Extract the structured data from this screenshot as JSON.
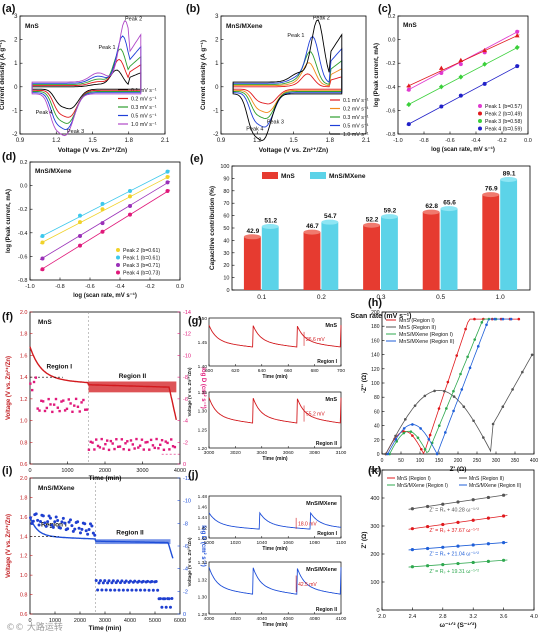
{
  "watermark": "©© 大路运转",
  "chart_data": [
    {
      "id": "a",
      "panel": "(a)",
      "type": "line",
      "inset": "MnS",
      "xlabel": "Voltage (V vs. Zn²⁺/Zn)",
      "ylabel": "Current density (A g⁻¹)",
      "xlim": [
        0.9,
        2.1
      ],
      "ylim": [
        -2,
        3
      ],
      "xticks": [
        "0.9",
        "1.2",
        "1.5",
        "1.8",
        "2.1"
      ],
      "yticks": [
        "-2",
        "-1",
        "0",
        "1",
        "2",
        "3"
      ],
      "annotations": [
        "Peak 1",
        "Peak 2",
        "Peak 3",
        "Peak 4"
      ],
      "series": [
        {
          "name": "0.1 mV s⁻¹",
          "color": "#000000",
          "ox": 1.7,
          "oa": 0.7,
          "rx": 1.32,
          "ra": -0.8
        },
        {
          "name": "0.2 mV s⁻¹",
          "color": "#e0191d",
          "ox": 1.72,
          "oa": 1.1,
          "rx": 1.31,
          "ra": -1.1
        },
        {
          "name": "0.3 mV s⁻¹",
          "color": "#2e9e2e",
          "ox": 1.73,
          "oa": 1.5,
          "rx": 1.3,
          "ra": -1.3
        },
        {
          "name": "0.5 mV s⁻¹",
          "color": "#1f3fd8",
          "ox": 1.75,
          "oa": 2.0,
          "rx": 1.29,
          "ra": -1.5
        },
        {
          "name": "1.0 mV s⁻¹",
          "color": "#b04ac8",
          "ox": 1.77,
          "oa": 2.6,
          "rx": 1.28,
          "ra": -1.7
        }
      ]
    },
    {
      "id": "b",
      "panel": "(b)",
      "type": "line",
      "inset": "MnS/MXene",
      "xlabel": "Voltage (V vs. Zn²⁺/Zn)",
      "ylabel": "Current density (A g⁻¹)",
      "xlim": [
        0.9,
        2.1
      ],
      "ylim": [
        -2,
        3
      ],
      "xticks": [
        "0.9",
        "1.2",
        "1.5",
        "1.8",
        "2.1"
      ],
      "yticks": [
        "-2",
        "-1",
        "0",
        "1",
        "2",
        "3"
      ],
      "annotations": [
        "Peak 1",
        "Peak 2",
        "Peak 3",
        "Peak 4"
      ],
      "series": [
        {
          "name": "0.1 mV s⁻¹",
          "color": "#e0191d",
          "ox": 1.62,
          "oa": 0.5,
          "rx": 1.3,
          "ra": -0.6
        },
        {
          "name": "0.2 mV s⁻¹",
          "color": "#f28a1c",
          "ox": 1.63,
          "oa": 0.9,
          "rx": 1.29,
          "ra": -0.9
        },
        {
          "name": "0.3 mV s⁻¹",
          "color": "#2e9e2e",
          "ox": 1.64,
          "oa": 1.3,
          "rx": 1.28,
          "ra": -1.1
        },
        {
          "name": "0.5 mV s⁻¹",
          "color": "#1f3fd8",
          "ox": 1.66,
          "oa": 1.9,
          "rx": 1.27,
          "ra": -1.4
        },
        {
          "name": "1.0 mV s⁻¹",
          "color": "#000000",
          "ox": 1.7,
          "oa": 2.6,
          "rx": 1.25,
          "ra": -1.9
        }
      ]
    },
    {
      "id": "c",
      "panel": "(c)",
      "type": "scatter",
      "inset": "MnS",
      "xlabel": "log (scan rate, mV s⁻¹)",
      "ylabel": "log (Peak current, mA)",
      "xlim": [
        -1.1,
        0.1
      ],
      "ylim": [
        -1.0,
        0.2
      ],
      "xticks": [
        "-1.0",
        "-0.8",
        "-0.6",
        "-0.4",
        "-0.2",
        "0.0"
      ],
      "yticks": [
        "-0.8",
        "-0.6",
        "-0.4",
        "-0.2",
        "0.0",
        "0.2"
      ],
      "x": [
        -1.0,
        -0.7,
        -0.52,
        -0.3,
        0.0
      ],
      "series": [
        {
          "name": "Peak 1 (b=0.57)",
          "color": "#e03ad0",
          "y": [
            -0.55,
            -0.38,
            -0.29,
            -0.17,
            0.04
          ]
        },
        {
          "name": "Peak 2 (b=0.49)",
          "color": "#e0191d",
          "y": [
            -0.51,
            -0.33,
            -0.25,
            -0.15,
            0.0
          ]
        },
        {
          "name": "Peak 3 (b=0.58)",
          "color": "#3ad03a",
          "y": [
            -0.7,
            -0.52,
            -0.42,
            -0.29,
            -0.12
          ]
        },
        {
          "name": "Peak 4 (b=0.59)",
          "color": "#2020c8",
          "y": [
            -0.9,
            -0.72,
            -0.61,
            -0.49,
            -0.31
          ]
        }
      ]
    },
    {
      "id": "d",
      "panel": "(d)",
      "type": "scatter",
      "inset": "MnS/MXene",
      "xlabel": "log (scan rate, mV s⁻¹)",
      "ylabel": "log (Peak current, mA)",
      "xlim": [
        -1.1,
        0.1
      ],
      "ylim": [
        -0.9,
        0.2
      ],
      "xticks": [
        "-1.0",
        "-0.8",
        "-0.6",
        "-0.4",
        "-0.2",
        "0.0"
      ],
      "yticks": [
        "-0.8",
        "-0.6",
        "-0.4",
        "-0.2",
        "0.0",
        "0.2"
      ],
      "x": [
        -1.0,
        -0.7,
        -0.52,
        -0.3,
        0.0
      ],
      "series": [
        {
          "name": "Peak 2 (b=0.61)",
          "color": "#f0d22a",
          "y": [
            -0.55,
            -0.36,
            -0.24,
            -0.12,
            0.06
          ]
        },
        {
          "name": "Peak 1 (b=0.61)",
          "color": "#3cc8ec",
          "y": [
            -0.49,
            -0.3,
            -0.19,
            -0.07,
            0.11
          ]
        },
        {
          "name": "Peak 3 (b=0.71)",
          "color": "#9a30b8",
          "y": [
            -0.7,
            -0.49,
            -0.37,
            -0.21,
            0.01
          ]
        },
        {
          "name": "Peak 4 (b=0.73)",
          "color": "#e0197a",
          "y": [
            -0.8,
            -0.58,
            -0.45,
            -0.29,
            -0.07
          ]
        }
      ]
    },
    {
      "id": "e",
      "panel": "(e)",
      "type": "bar",
      "xlabel": "Scan rate (mV s⁻¹)",
      "ylabel": "Capacitive contribution (%)",
      "ylim": [
        0,
        100
      ],
      "yticks": [
        "0",
        "10",
        "20",
        "30",
        "40",
        "50",
        "60",
        "70",
        "80",
        "90",
        "100"
      ],
      "categories": [
        "0.1",
        "0.2",
        "0.3",
        "0.5",
        "1.0"
      ],
      "series": [
        {
          "name": "MnS",
          "color": "#e63b30",
          "values": [
            42.9,
            46.7,
            52.2,
            62.8,
            76.9
          ]
        },
        {
          "name": "MnS/MXene",
          "color": "#5cd3e8",
          "values": [
            51.2,
            54.7,
            59.2,
            65.6,
            89.1
          ]
        }
      ],
      "labels": [
        [
          "42.9",
          "46.7",
          "52.2",
          "62.8",
          "76.9"
        ],
        [
          "51.2",
          "54.7",
          "59.2",
          "65.6",
          "89.1"
        ]
      ]
    },
    {
      "id": "f",
      "panel": "(f)",
      "type": "line",
      "inset": "MnS",
      "xlabel": "Time (min)",
      "ylabel": "Voltage (V vs. Zn²⁺/Zn)",
      "ylabel2": "log D (cm² s⁻¹)",
      "xlim": [
        0,
        4100
      ],
      "ylim": [
        0.6,
        2.0
      ],
      "ylim2": [
        -14,
        0
      ],
      "xticks": [
        "0",
        "1000",
        "2000",
        "3000",
        "4000"
      ],
      "yticks": [
        "0.6",
        "0.8",
        "1.0",
        "1.2",
        "1.4",
        "1.6",
        "1.8",
        "2.0"
      ],
      "yticks2": [
        "0",
        "-2",
        "-4",
        "-6",
        "-8",
        "-10",
        "-12",
        "-14"
      ],
      "regions": [
        "Region I",
        "Region II"
      ]
    },
    {
      "id": "g",
      "panel": "(g)",
      "type": "line",
      "inset": "MnS",
      "xlabel": "Time (min)",
      "ylabel": "Voltage (V vs. Zn²⁺/Zn)",
      "top": {
        "xticks": [
          "600",
          "620",
          "640",
          "660",
          "680",
          "700"
        ],
        "yticks": [
          "1.40",
          "1.45",
          "1.50"
        ],
        "annotation": "26.6 mV",
        "region": "Region I"
      },
      "bottom": {
        "xticks": [
          "3000",
          "3020",
          "3040",
          "3060",
          "3080",
          "3100"
        ],
        "yticks": [
          "1.20",
          "1.25",
          "1.30",
          "1.35"
        ],
        "annotation": "55.2 mV",
        "region": "Region II"
      }
    },
    {
      "id": "h",
      "panel": "(h)",
      "type": "scatter",
      "xlabel": "Z' (Ω)",
      "ylabel": "-Z'' (Ω)",
      "xlim": [
        0,
        400
      ],
      "ylim": [
        0,
        200
      ],
      "xticks": [
        "0",
        "50",
        "100",
        "150",
        "200",
        "250",
        "300",
        "350",
        "400"
      ],
      "yticks": [
        "0",
        "20",
        "40",
        "60",
        "80",
        "100",
        "120",
        "140",
        "160",
        "180",
        "200"
      ],
      "series": [
        {
          "name": "MnS (Region I)",
          "color": "#e0191d",
          "marker": "circle"
        },
        {
          "name": "MnS (Region II)",
          "color": "#555555",
          "marker": "square"
        },
        {
          "name": "MnS/MXene (Region I)",
          "color": "#2fa84f",
          "marker": "triangle-down"
        },
        {
          "name": "MnS/MXene (Region II)",
          "color": "#1f5fd8",
          "marker": "triangle"
        }
      ]
    },
    {
      "id": "i",
      "panel": "(i)",
      "type": "line",
      "inset": "MnS/MXene",
      "xlabel": "Time (min)",
      "ylabel": "Voltage (V vs. Zn²⁺/Zn)",
      "ylabel2": "log D (cm² s⁻¹)",
      "xlim": [
        0,
        6300
      ],
      "ylim": [
        0.6,
        2.0
      ],
      "ylim2": [
        -12,
        0
      ],
      "xticks": [
        "0",
        "1000",
        "2000",
        "3000",
        "4000",
        "5000",
        "6000"
      ],
      "yticks": [
        "0.6",
        "0.8",
        "1.0",
        "1.2",
        "1.4",
        "1.6",
        "1.8",
        "2.0"
      ],
      "yticks2": [
        "0",
        "-2",
        "-4",
        "-6",
        "-8",
        "-10",
        "-12"
      ],
      "regions": [
        "Region I",
        "Region II"
      ]
    },
    {
      "id": "j",
      "panel": "(j)",
      "type": "line",
      "inset": "MnS/MXene",
      "xlabel": "Time (min)",
      "ylabel": "Voltage (V vs. Zn²⁺/Zn)",
      "top": {
        "xticks": [
          "1000",
          "1020",
          "1040",
          "1060",
          "1080",
          "1100"
        ],
        "yticks": [
          "1.40",
          "1.42",
          "1.44",
          "1.46",
          "1.48"
        ],
        "annotation": "18.0 mV",
        "region": "Region I"
      },
      "bottom": {
        "xticks": [
          "4000",
          "4020",
          "4040",
          "4060",
          "4080",
          "4100"
        ],
        "yticks": [
          "1.28",
          "1.30",
          "1.32",
          "1.34"
        ],
        "annotation": "42.5 mV",
        "region": "Region II"
      }
    },
    {
      "id": "k",
      "panel": "(k)",
      "type": "scatter",
      "xlabel": "ω⁻¹ᐟ² (S⁻¹ᐟ²)",
      "ylabel": "Z' (Ω)",
      "xlim": [
        2.0,
        4.0
      ],
      "ylim": [
        0,
        500
      ],
      "xticks": [
        "2.0",
        "2.4",
        "2.8",
        "3.2",
        "3.6",
        "4.0"
      ],
      "yticks": [
        "0",
        "100",
        "200",
        "300",
        "400",
        "500"
      ],
      "x": [
        2.4,
        2.6,
        2.8,
        3.0,
        3.2,
        3.4,
        3.6
      ],
      "series": [
        {
          "name": "MnS (Region I)",
          "color": "#e0191d",
          "eq": "Z' = Rₛ + 37.67 ω⁻¹ᐟ²",
          "intercept": 200,
          "slope": 37.67
        },
        {
          "name": "MnS (Region II)",
          "color": "#555555",
          "eq": "Z' = Rₛ + 40.28 ω⁻¹ᐟ²",
          "intercept": 265,
          "slope": 40.28
        },
        {
          "name": "MnS/MXene (Region I)",
          "color": "#2fa84f",
          "eq": "Z' = Rₛ + 19.31 ω⁻¹ᐟ²",
          "intercept": 108,
          "slope": 19.31
        },
        {
          "name": "MnS/MXene (Region II)",
          "color": "#1f5fd8",
          "eq": "Z' = Rₛ + 21.04 ω⁻¹ᐟ²",
          "intercept": 165,
          "slope": 21.04
        }
      ]
    }
  ]
}
